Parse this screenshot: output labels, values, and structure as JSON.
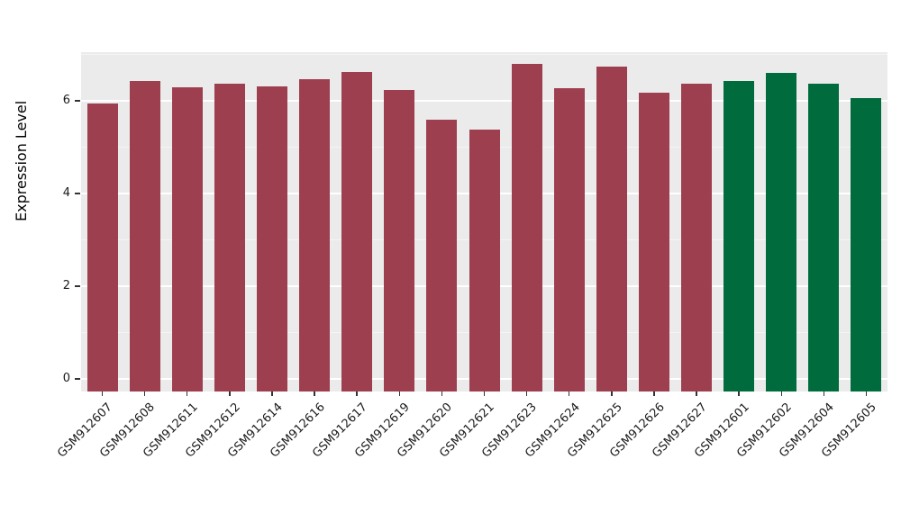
{
  "chart_data": {
    "type": "bar",
    "title": "",
    "xlabel": "",
    "ylabel": "Expression Level",
    "ylim": [
      0,
      7.05
    ],
    "yticks": [
      0,
      2,
      4,
      6
    ],
    "grid": "horizontal-major-white-on-gray-panel",
    "legend": "none",
    "panel_background": "#EBEBEB",
    "categories": [
      "GSM912607",
      "GSM912608",
      "GSM912611",
      "GSM912612",
      "GSM912614",
      "GSM912616",
      "GSM912617",
      "GSM912619",
      "GSM912620",
      "GSM912621",
      "GSM912623",
      "GSM912624",
      "GSM912625",
      "GSM912626",
      "GSM912627",
      "GSM912601",
      "GSM912602",
      "GSM912604",
      "GSM912605"
    ],
    "values": [
      5.95,
      6.42,
      6.3,
      6.36,
      6.32,
      6.46,
      6.62,
      6.23,
      5.6,
      5.38,
      6.8,
      6.28,
      6.73,
      6.18,
      6.36,
      6.42,
      6.6,
      6.36,
      6.06
    ],
    "bar_colors": [
      "#9e3f50",
      "#9e3f50",
      "#9e3f50",
      "#9e3f50",
      "#9e3f50",
      "#9e3f50",
      "#9e3f50",
      "#9e3f50",
      "#9e3f50",
      "#9e3f50",
      "#9e3f50",
      "#9e3f50",
      "#9e3f50",
      "#9e3f50",
      "#9e3f50",
      "#006b3c",
      "#006b3c",
      "#006b3c",
      "#006b3c"
    ],
    "group_colors": {
      "red_group": "#9e3f50",
      "green_group": "#006b3c"
    }
  }
}
